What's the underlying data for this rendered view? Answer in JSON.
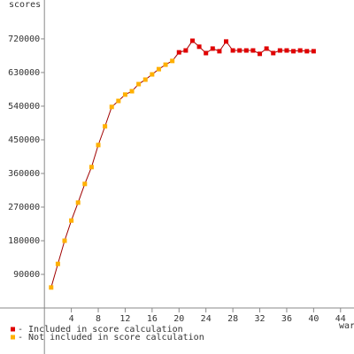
{
  "chart_data": {
    "type": "line",
    "y_label": "scores",
    "x_label": "war",
    "xlim": [
      -6.6,
      46
    ],
    "ylim": [
      -123000,
      824000
    ],
    "xticks": [
      4,
      8,
      12,
      16,
      20,
      24,
      28,
      32,
      36,
      40,
      44
    ],
    "yticks": [
      90000,
      180000,
      270000,
      360000,
      450000,
      540000,
      630000,
      720000
    ],
    "line_color": "#a00000",
    "series": [
      {
        "name": "- Included in score calculation",
        "color": "#e00000",
        "x": [
          20,
          21,
          22,
          23,
          24,
          25,
          26,
          27,
          28,
          29,
          30,
          31,
          32,
          33,
          34,
          35,
          36,
          37,
          38,
          39,
          40
        ],
        "values": [
          684000,
          689000,
          715000,
          699000,
          682000,
          694000,
          687000,
          713000,
          689000,
          689000,
          689000,
          689000,
          680000,
          694000,
          682000,
          689000,
          689000,
          687000,
          689000,
          687000,
          687000
        ]
      },
      {
        "name": "- Not included in score calculation",
        "color": "#ffb000",
        "x": [
          1,
          2,
          3,
          4,
          5,
          6,
          7,
          8,
          9,
          10,
          11,
          12,
          13,
          14,
          15,
          16,
          17,
          18,
          19
        ],
        "values": [
          55000,
          118000,
          180000,
          234000,
          282000,
          332000,
          377000,
          436000,
          486000,
          538000,
          554000,
          571000,
          580000,
          599000,
          611000,
          625000,
          639000,
          651000,
          661000
        ]
      }
    ]
  }
}
